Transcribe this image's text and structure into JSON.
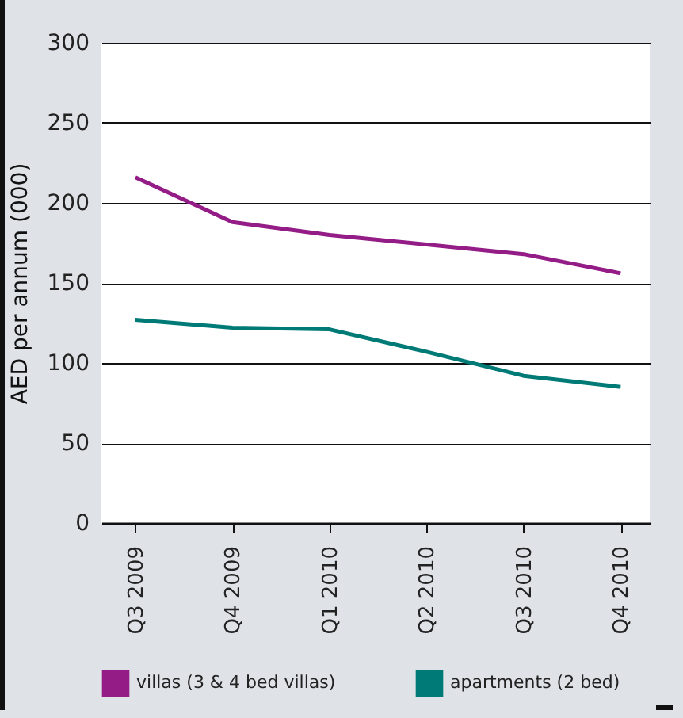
{
  "chart_data": {
    "type": "line",
    "ylabel": "AED per annum (000)",
    "categories": [
      "Q3 2009",
      "Q4 2009",
      "Q1 2010",
      "Q2 2010",
      "Q3 2010",
      "Q4 2010"
    ],
    "series": [
      {
        "name": "villas (3 & 4 bed villas)",
        "color": "#931c86",
        "values": [
          216,
          188,
          180,
          174,
          168,
          156
        ]
      },
      {
        "name": "apartments (2 bed)",
        "color": "#007a76",
        "values": [
          127,
          122,
          121,
          107,
          92,
          85
        ]
      }
    ],
    "ylim": [
      0,
      300
    ],
    "yticks": [
      0,
      50,
      100,
      150,
      200,
      250,
      300
    ],
    "grid": "y",
    "legend": "bottom",
    "marker": "none",
    "line_style": "solid"
  }
}
